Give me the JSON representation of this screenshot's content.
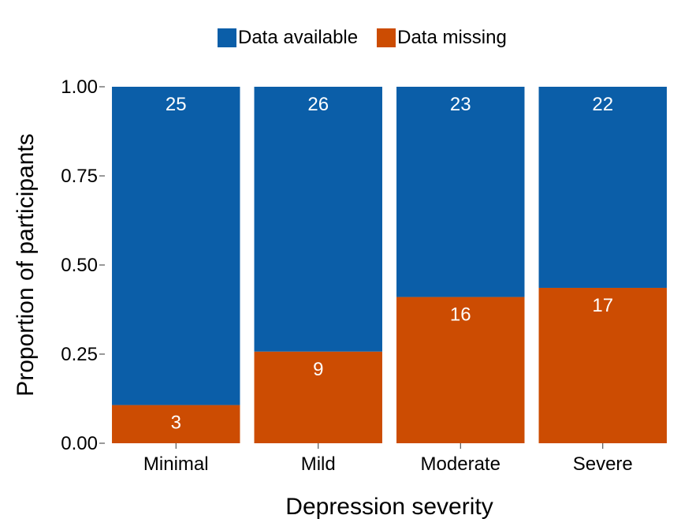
{
  "chart_data": {
    "type": "bar",
    "stacked": true,
    "normalized": true,
    "categories": [
      "Minimal",
      "Mild",
      "Moderate",
      "Severe"
    ],
    "series": [
      {
        "name": "Data missing",
        "values": [
          3,
          9,
          16,
          17
        ],
        "color": "#CC4C02"
      },
      {
        "name": "Data available",
        "values": [
          25,
          26,
          23,
          22
        ],
        "color": "#0B5EA8"
      }
    ],
    "xlabel": "Depression severity",
    "ylabel": "Proportion of participants",
    "ylim": [
      0,
      1
    ],
    "yticks": [
      "0.00",
      "0.25",
      "0.50",
      "0.75",
      "1.00"
    ],
    "legend_position": "top",
    "grid": false
  }
}
